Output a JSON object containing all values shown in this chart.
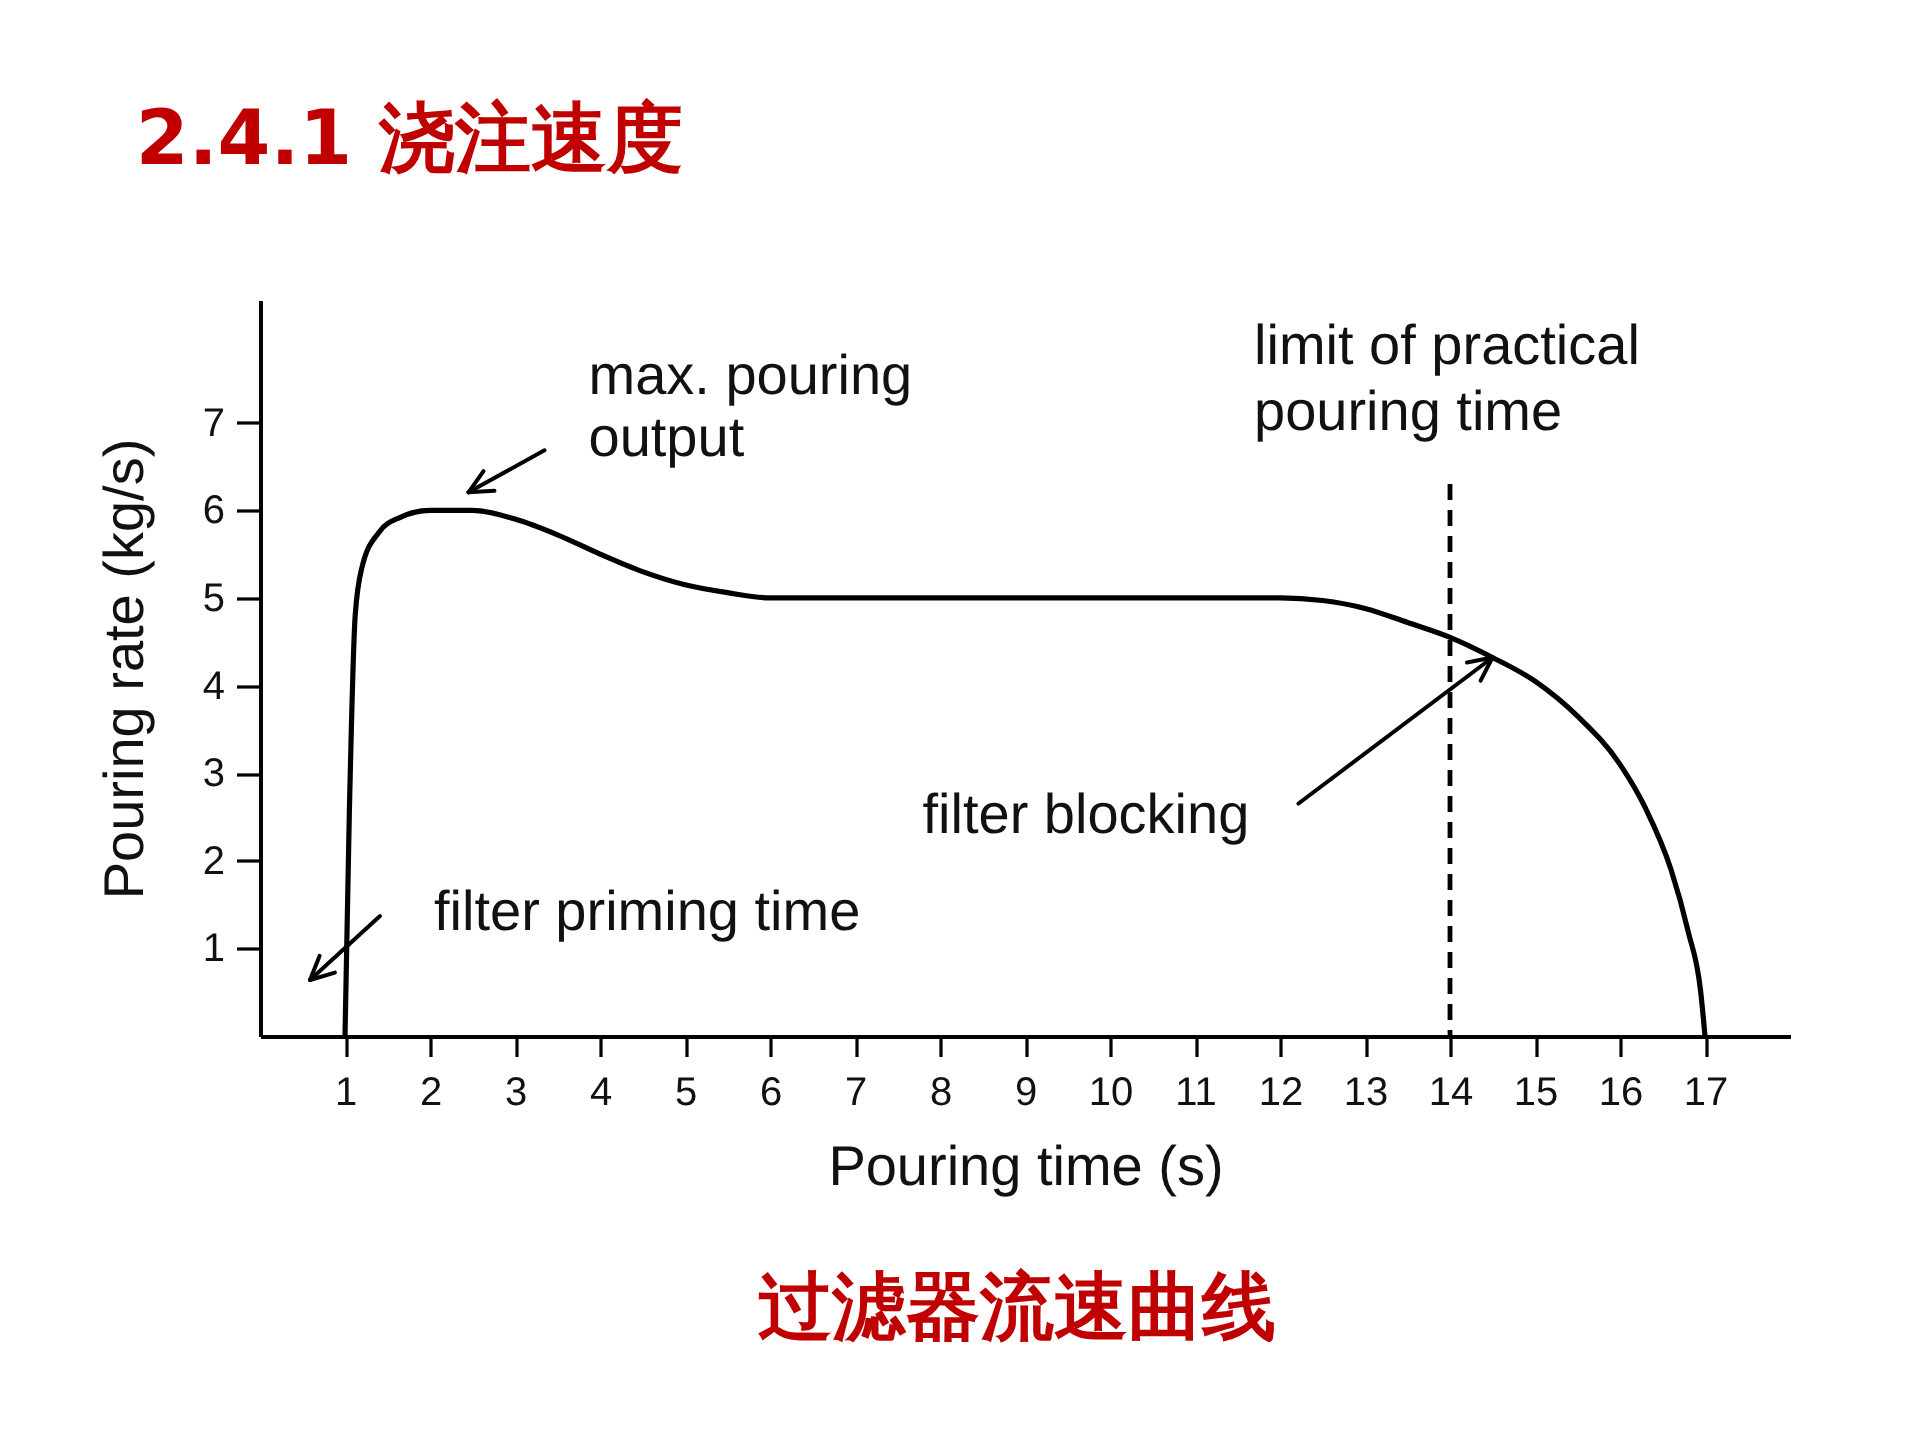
{
  "chart_data": {
    "type": "line",
    "title": "2.4.1 浇注速度",
    "xlabel": "Pouring time (s)",
    "ylabel": "Pouring rate (kg/s)",
    "x": [
      1.0,
      1.05,
      1.12,
      1.2,
      1.4,
      1.65,
      2.0,
      2.5,
      3.0,
      3.5,
      4.0,
      4.5,
      5.0,
      5.5,
      6.0,
      8.0,
      10.0,
      12.0,
      12.5,
      13.0,
      13.5,
      14.0,
      14.5,
      15.0,
      15.5,
      16.0,
      16.3,
      16.6,
      16.8,
      16.95,
      17.0
    ],
    "series": [
      {
        "color": "#000000",
        "values": [
          0,
          2.5,
          4.8,
          5.35,
          5.75,
          5.92,
          6.0,
          6.0,
          5.9,
          5.72,
          5.5,
          5.3,
          5.15,
          5.06,
          5.0,
          5.0,
          5.0,
          5.0,
          4.97,
          4.88,
          4.72,
          4.55,
          4.32,
          4.05,
          3.65,
          3.1,
          2.6,
          1.9,
          1.2,
          0.5,
          0
        ]
      }
    ],
    "xlim": [
      0,
      18
    ],
    "ylim": [
      0,
      8.4
    ],
    "xticks": [
      1,
      2,
      3,
      4,
      5,
      6,
      7,
      8,
      9,
      10,
      11,
      12,
      13,
      14,
      15,
      16,
      17
    ],
    "yticks": [
      1,
      2,
      3,
      4,
      5,
      6,
      7
    ],
    "ref_lines": [
      {
        "axis": "x",
        "value": 14,
        "label": "limit of practical pouring time",
        "line_style": "dashed",
        "color": "#000000"
      }
    ],
    "annotations": [
      {
        "text": "max. pouring output",
        "x": 2.5,
        "y": 6.0
      },
      {
        "text": "filter blocking",
        "x": 14.5,
        "y": 4.32
      },
      "filter priming time",
      "过滤器流速曲线"
    ],
    "grid": false
  }
}
